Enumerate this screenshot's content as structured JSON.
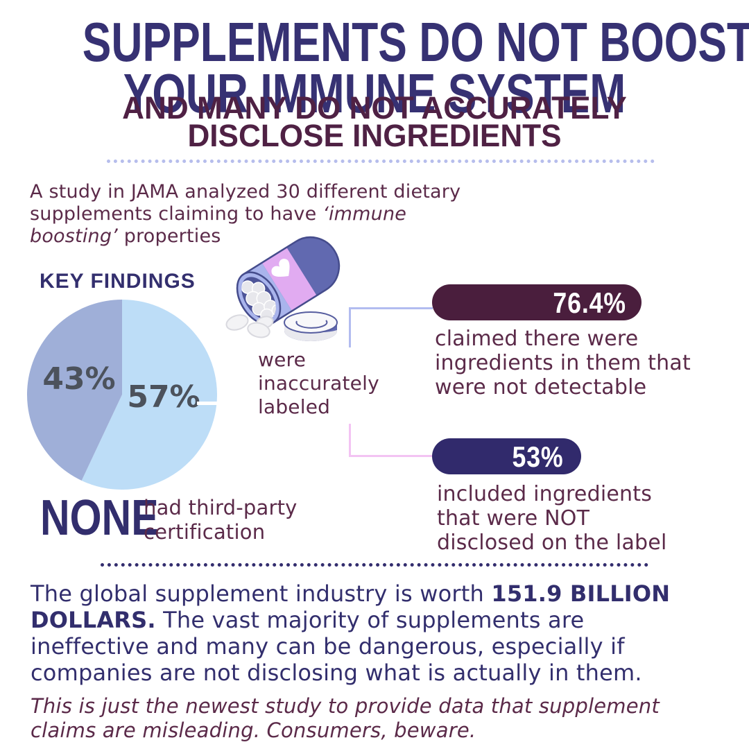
{
  "colors": {
    "heading_navy": "#363173",
    "heading_maroon": "#4f2144",
    "body_plum": "#5b2a49",
    "paragraph_navy": "#322e6d",
    "badge_maroon": "#4a1e3d",
    "badge_navy": "#312a6c",
    "connector_blue": "#b2bcf0",
    "connector_pink": "#f3c3f3",
    "divider_light": "#b6bdec",
    "divider_dark": "#332d6e",
    "pie_blue": "#bdddf7",
    "pie_periwinkle": "#9fafd8",
    "pie_label_gray": "#4c525c"
  },
  "header": {
    "title_lines": [
      "SUPPLEMENTS DO NOT BOOST",
      "YOUR IMMUNE SYSTEM"
    ],
    "subtitle_lines": [
      "AND MANY DO NOT ACCURATELY",
      "DISCLOSE INGREDIENTS"
    ]
  },
  "intro": {
    "lines": [
      [
        {
          "t": "A study in JAMA analyzed 30 different dietary"
        }
      ],
      [
        {
          "t": "supplements claiming to have "
        },
        {
          "t": "‘immune",
          "s": "i"
        }
      ],
      [
        {
          "t": "boosting’",
          "s": "i"
        },
        {
          "t": " properties"
        }
      ]
    ]
  },
  "key_findings_label": "KEY FINDINGS",
  "chart_data": {
    "type": "pie",
    "title": "KEY FINDINGS",
    "labels": [
      "57%",
      "43%"
    ],
    "values": [
      57,
      43
    ],
    "colors": [
      "#bdddf7",
      "#9fafd8"
    ],
    "start_angle_deg": 0,
    "direction": "clockwise",
    "label_color": "#4c525c",
    "annotation": "57% of the 30 supplements were inaccurately labeled",
    "legend_position": "none",
    "grid": false
  },
  "bottle_caption": {
    "lines": [
      [
        {
          "t": "were"
        }
      ],
      [
        {
          "t": "inaccurately"
        }
      ],
      [
        {
          "t": "labeled"
        }
      ]
    ]
  },
  "findings": [
    {
      "badge_label": "76.4%",
      "badge_color": "#4a1e3d",
      "lines": [
        [
          {
            "t": "claimed there were"
          }
        ],
        [
          {
            "t": "ingredients in them that"
          }
        ],
        [
          {
            "t": "were not detectable"
          }
        ]
      ]
    },
    {
      "badge_label": "53%",
      "badge_color": "#312a6c",
      "lines": [
        [
          {
            "t": "included ingredients"
          }
        ],
        [
          {
            "t": "that were NOT"
          }
        ],
        [
          {
            "t": "disclosed on the label"
          }
        ]
      ]
    }
  ],
  "none_stat": {
    "value": "NONE",
    "caption_lines": [
      [
        {
          "t": "had third-party"
        }
      ],
      [
        {
          "t": "certification"
        }
      ]
    ]
  },
  "industry": {
    "lines": [
      [
        {
          "t": "The global supplement industry is worth "
        },
        {
          "t": "151.9 BILLION",
          "s": "b"
        }
      ],
      [
        {
          "t": "DOLLARS.",
          "s": "b"
        },
        {
          "t": " The vast majority of supplements are"
        }
      ],
      [
        {
          "t": "ineffective and many can be dangerous, especially if"
        }
      ],
      [
        {
          "t": "companies are not disclosing what is actually in them."
        }
      ]
    ]
  },
  "footer": {
    "lines": [
      [
        {
          "t": "This is just the newest study to provide data that supplement"
        }
      ],
      [
        {
          "t": "claims are misleading. Consumers, beware."
        }
      ]
    ]
  }
}
